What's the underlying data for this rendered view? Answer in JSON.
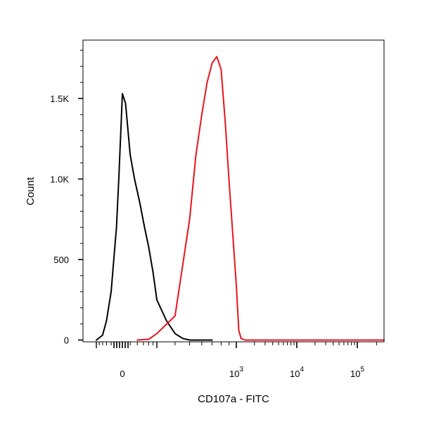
{
  "chart_data": {
    "type": "line",
    "xlabel": "CD107a - FITC",
    "ylabel": "Count",
    "xscale": "biexponential",
    "grid": false,
    "legend": "none",
    "ylim": [
      0,
      1850
    ],
    "yticks": [
      {
        "value": 0,
        "label": "0"
      },
      {
        "value": 500,
        "label": "500"
      },
      {
        "value": 1000,
        "label": "1.0K"
      },
      {
        "value": 1500,
        "label": "1.5K"
      }
    ],
    "xticks": [
      {
        "value": 0,
        "base": "0",
        "exp": ""
      },
      {
        "value": 1000,
        "base": "10",
        "exp": "3"
      },
      {
        "value": 10000,
        "base": "10",
        "exp": "4"
      },
      {
        "value": 100000,
        "base": "10",
        "exp": "5"
      }
    ],
    "series": [
      {
        "color": "#000000",
        "x": [
          -300,
          -200,
          -150,
          -100,
          -50,
          -30,
          -10,
          0,
          20,
          50,
          80,
          120,
          160,
          200,
          250,
          300,
          350,
          400,
          450,
          500,
          550,
          600,
          650,
          700
        ],
        "y": [
          0,
          30,
          120,
          300,
          700,
          1000,
          1350,
          1530,
          1470,
          1150,
          1000,
          850,
          700,
          580,
          420,
          250,
          120,
          40,
          10,
          0,
          0,
          0,
          0,
          0
        ]
      },
      {
        "color": "#e8141c",
        "x": [
          100,
          200,
          300,
          400,
          500,
          550,
          600,
          650,
          700,
          750,
          800,
          850,
          900,
          1000,
          1100,
          1200,
          1400,
          2000,
          5000,
          20000,
          100000,
          262144
        ],
        "y": [
          0,
          5,
          40,
          150,
          750,
          1150,
          1400,
          1600,
          1720,
          1760,
          1680,
          1350,
          980,
          340,
          60,
          10,
          0,
          0,
          0,
          0,
          0,
          0
        ]
      }
    ]
  }
}
